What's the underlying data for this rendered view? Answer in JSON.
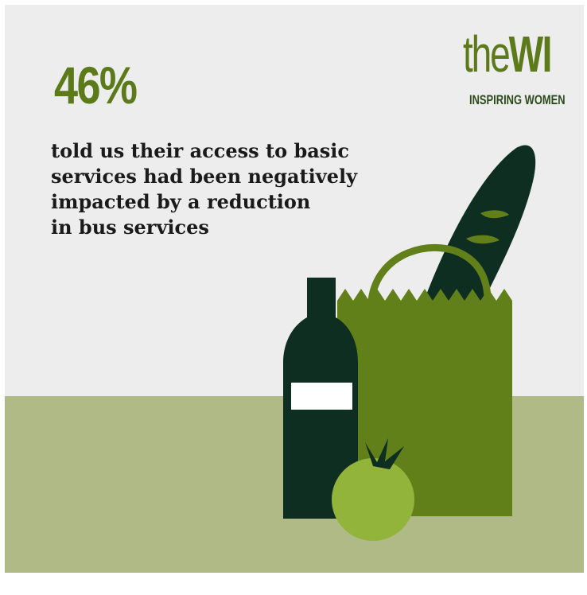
{
  "stat": {
    "value": "46%"
  },
  "caption": {
    "lines": [
      "told us their access to basic",
      "services had been negatively",
      "impacted by a reduction",
      "in bus services"
    ]
  },
  "logo": {
    "word_prefix": "the",
    "word_main": "WI",
    "tagline": "INSPIRING WOMEN"
  },
  "colors": {
    "background": "#ededed",
    "floor": "#b0ba86",
    "accent_green": "#5c7a1a",
    "bag_green": "#628019",
    "dark_green": "#0e2e22",
    "apple_green": "#93b43a",
    "text": "#1a1a1a"
  },
  "illustration": {
    "items": [
      "baguette-icon",
      "paper-bag-icon",
      "bottle-icon",
      "apple-icon"
    ]
  }
}
